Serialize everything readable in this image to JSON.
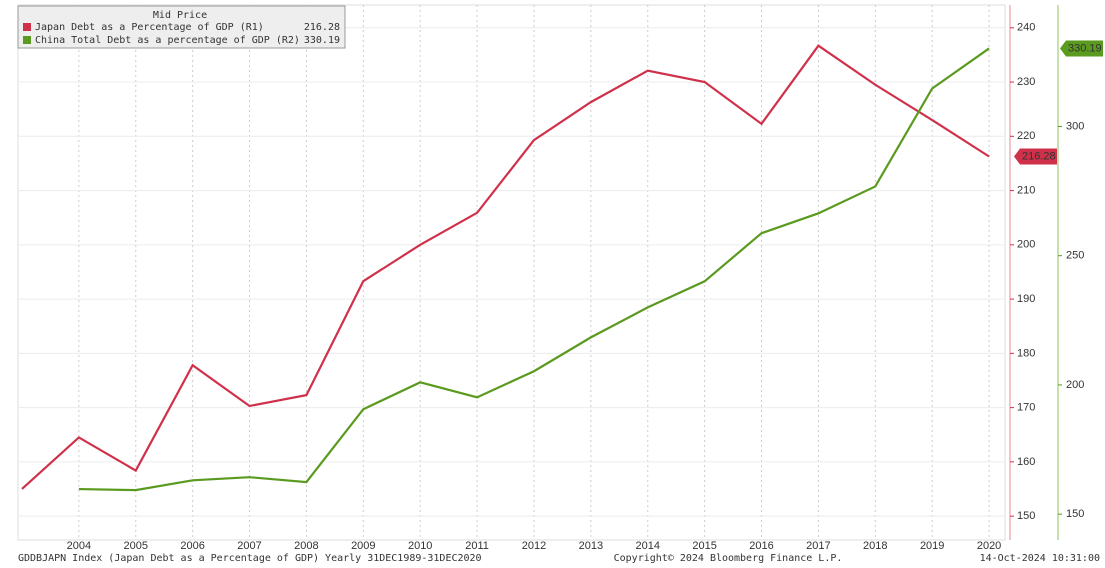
{
  "chart_data": {
    "type": "line",
    "legend_title": "Mid Price",
    "x": [
      2003,
      2004,
      2005,
      2006,
      2007,
      2008,
      2009,
      2010,
      2011,
      2012,
      2013,
      2014,
      2015,
      2016,
      2017,
      2018,
      2019,
      2020
    ],
    "xlim": [
      2002.93,
      2020.28
    ],
    "xticks": [
      2004,
      2005,
      2006,
      2007,
      2008,
      2009,
      2010,
      2011,
      2012,
      2013,
      2014,
      2015,
      2016,
      2017,
      2018,
      2019,
      2020
    ],
    "ylim": [
      145.6,
      244.2
    ],
    "yticks": [
      150,
      160,
      170,
      180,
      190,
      200,
      210,
      220,
      230,
      240
    ],
    "y2lim": [
      140,
      347
    ],
    "y2ticks": [
      150,
      200,
      250,
      300
    ],
    "grid": true,
    "legend": "upper left",
    "series": [
      {
        "name": "Japan Debt as a Percentage of GDP  (R1)",
        "color": "#d0314a",
        "values": [
          155,
          164.5,
          158.4,
          177.8,
          170.3,
          172.3,
          193.3,
          200,
          205.9,
          219.3,
          226.3,
          232.1,
          230,
          222.3,
          236.7,
          229.5,
          223,
          216.28
        ]
      },
      {
        "name": "China Total Debt as a percentage of GDP  (R2)",
        "color": "#5a9a1e",
        "axis": "y2",
        "values": [
          null,
          159.7,
          159.3,
          163.1,
          164.3,
          162.4,
          190.6,
          201,
          195.2,
          205.3,
          218.4,
          230,
          240.1,
          258.7,
          266.4,
          276.8,
          314.7,
          330.19
        ]
      }
    ],
    "footer_left": "GDDBJAPN Index (Japan Debt as a Percentage of GDP)  Yearly 31DEC1989-31DEC2020",
    "footer_center": "Copyright© 2024 Bloomberg Finance L.P.",
    "footer_right": "14-Oct-2024 10:31:00"
  }
}
